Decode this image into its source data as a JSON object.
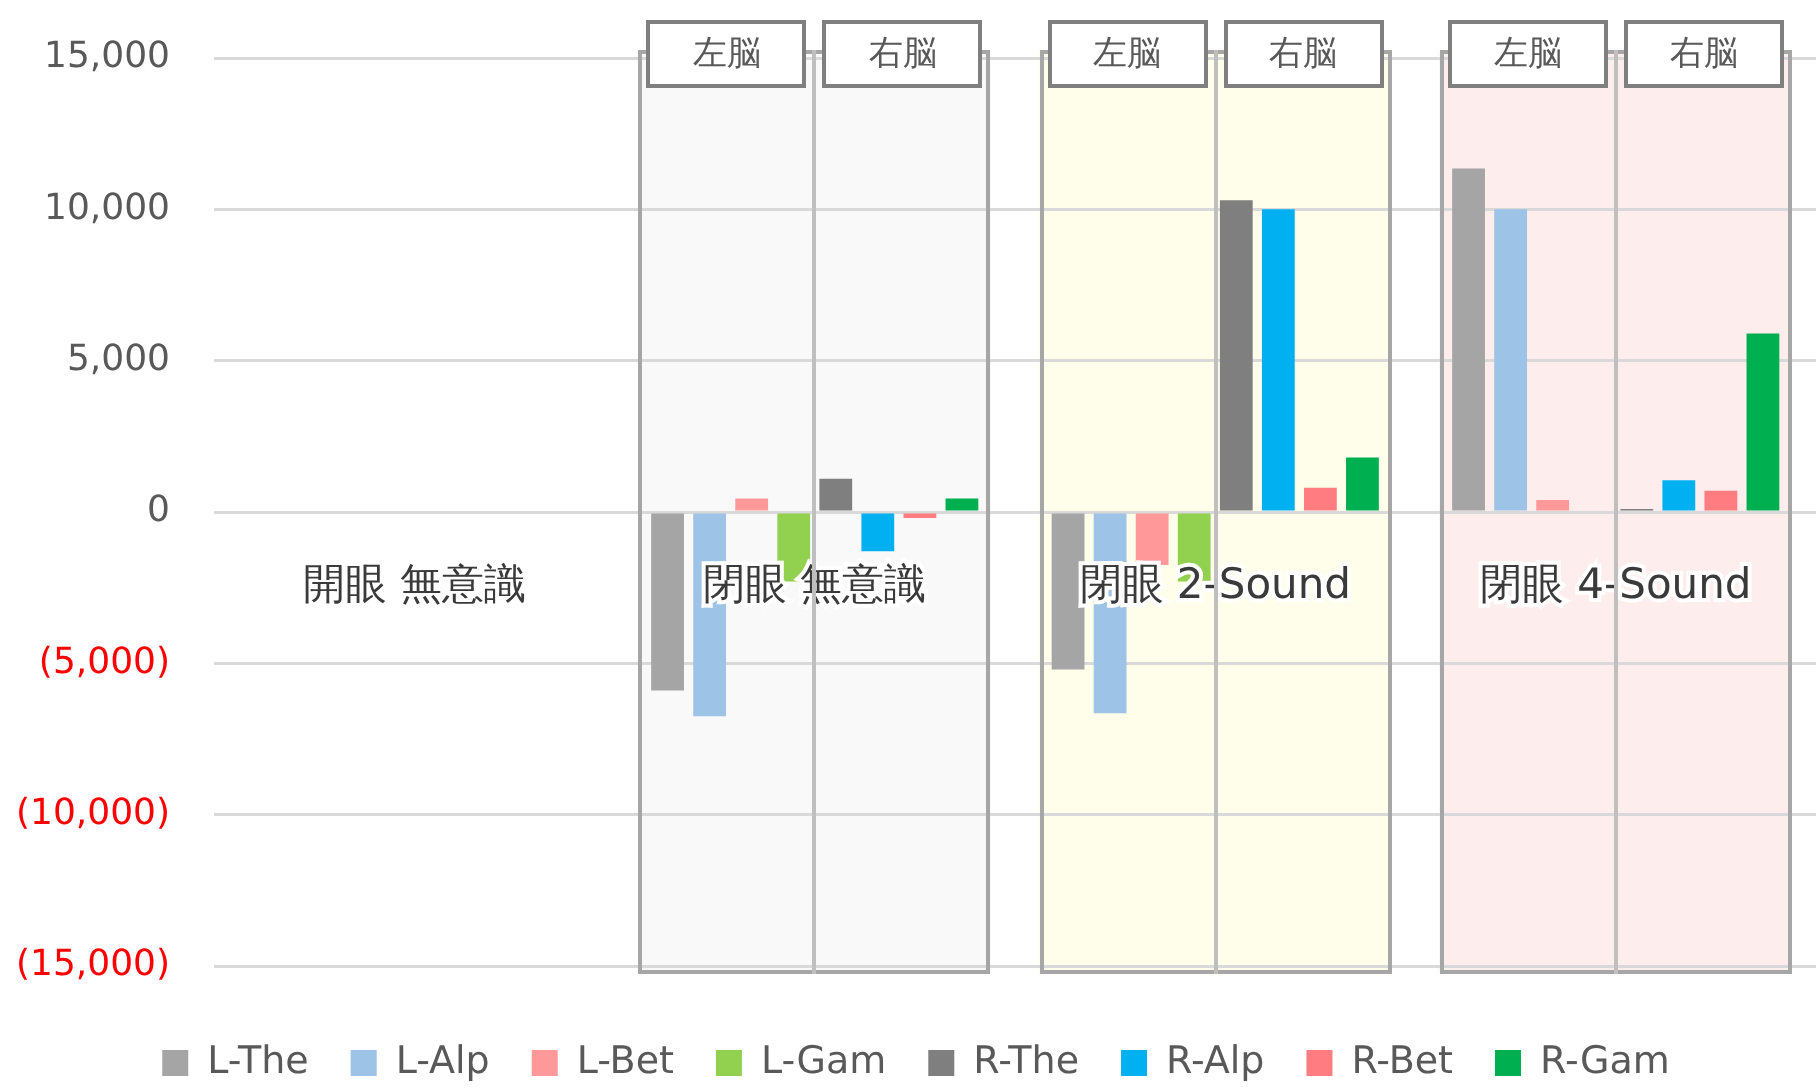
{
  "chart_data": {
    "type": "bar",
    "categories": [
      "開眼 無意識",
      "閉眼 無意識",
      "閉眼 2-Sound",
      "閉眼 4-Sound"
    ],
    "series": [
      {
        "name": "L-The",
        "color": "#a5a5a5",
        "values": [
          null,
          -5900,
          -5200,
          11350
        ]
      },
      {
        "name": "L-Alp",
        "color": "#9dc3e6",
        "values": [
          null,
          -6750,
          -6650,
          10000
        ]
      },
      {
        "name": "L-Bet",
        "color": "#ff9999",
        "values": [
          null,
          450,
          -1750,
          400
        ]
      },
      {
        "name": "L-Gam",
        "color": "#92d050",
        "values": [
          null,
          -2300,
          -2300,
          null
        ]
      },
      {
        "name": "R-The",
        "color": "#7f7f7f",
        "values": [
          null,
          1100,
          10300,
          100
        ]
      },
      {
        "name": "R-Alp",
        "color": "#00b0f0",
        "values": [
          null,
          -1300,
          10000,
          1050
        ]
      },
      {
        "name": "R-Bet",
        "color": "#ff7c80",
        "values": [
          null,
          -200,
          800,
          700
        ]
      },
      {
        "name": "R-Gam",
        "color": "#00b050",
        "values": [
          null,
          450,
          1800,
          5900
        ]
      }
    ],
    "ylim": [
      -15000,
      15000
    ],
    "yticks": [
      {
        "value": -15000,
        "label": "(15,000)"
      },
      {
        "value": -10000,
        "label": "(10,000)"
      },
      {
        "value": -5000,
        "label": "(5,000)"
      },
      0,
      {
        "value": 5000,
        "label": "5,000"
      },
      {
        "value": 10000,
        "label": "10,000"
      },
      {
        "value": 15000,
        "label": "15,000"
      }
    ],
    "grid": "y",
    "legend": "bottom",
    "bands": [
      {
        "axis": "x",
        "from": "閉眼 無意識",
        "to": "閉眼 無意識",
        "color": "#f9f9f9"
      },
      {
        "axis": "x",
        "from": "閉眼 2-Sound",
        "to": "閉眼 2-Sound",
        "color": "#fefeea"
      },
      {
        "axis": "x",
        "from": "閉眼 4-Sound",
        "to": "閉眼 4-Sound",
        "color": "#fdeded"
      }
    ],
    "annotations": [
      {
        "text": "左脳",
        "x": "閉眼 無意識"
      },
      {
        "text": "右脳",
        "x": "閉眼 無意識"
      },
      {
        "text": "左脳",
        "x": "閉眼 2-Sound"
      },
      {
        "text": "右脳",
        "x": "閉眼 2-Sound"
      },
      {
        "text": "左脳",
        "x": "閉眼 4-Sound"
      },
      {
        "text": "右脳",
        "x": "閉眼 4-Sound"
      }
    ]
  }
}
